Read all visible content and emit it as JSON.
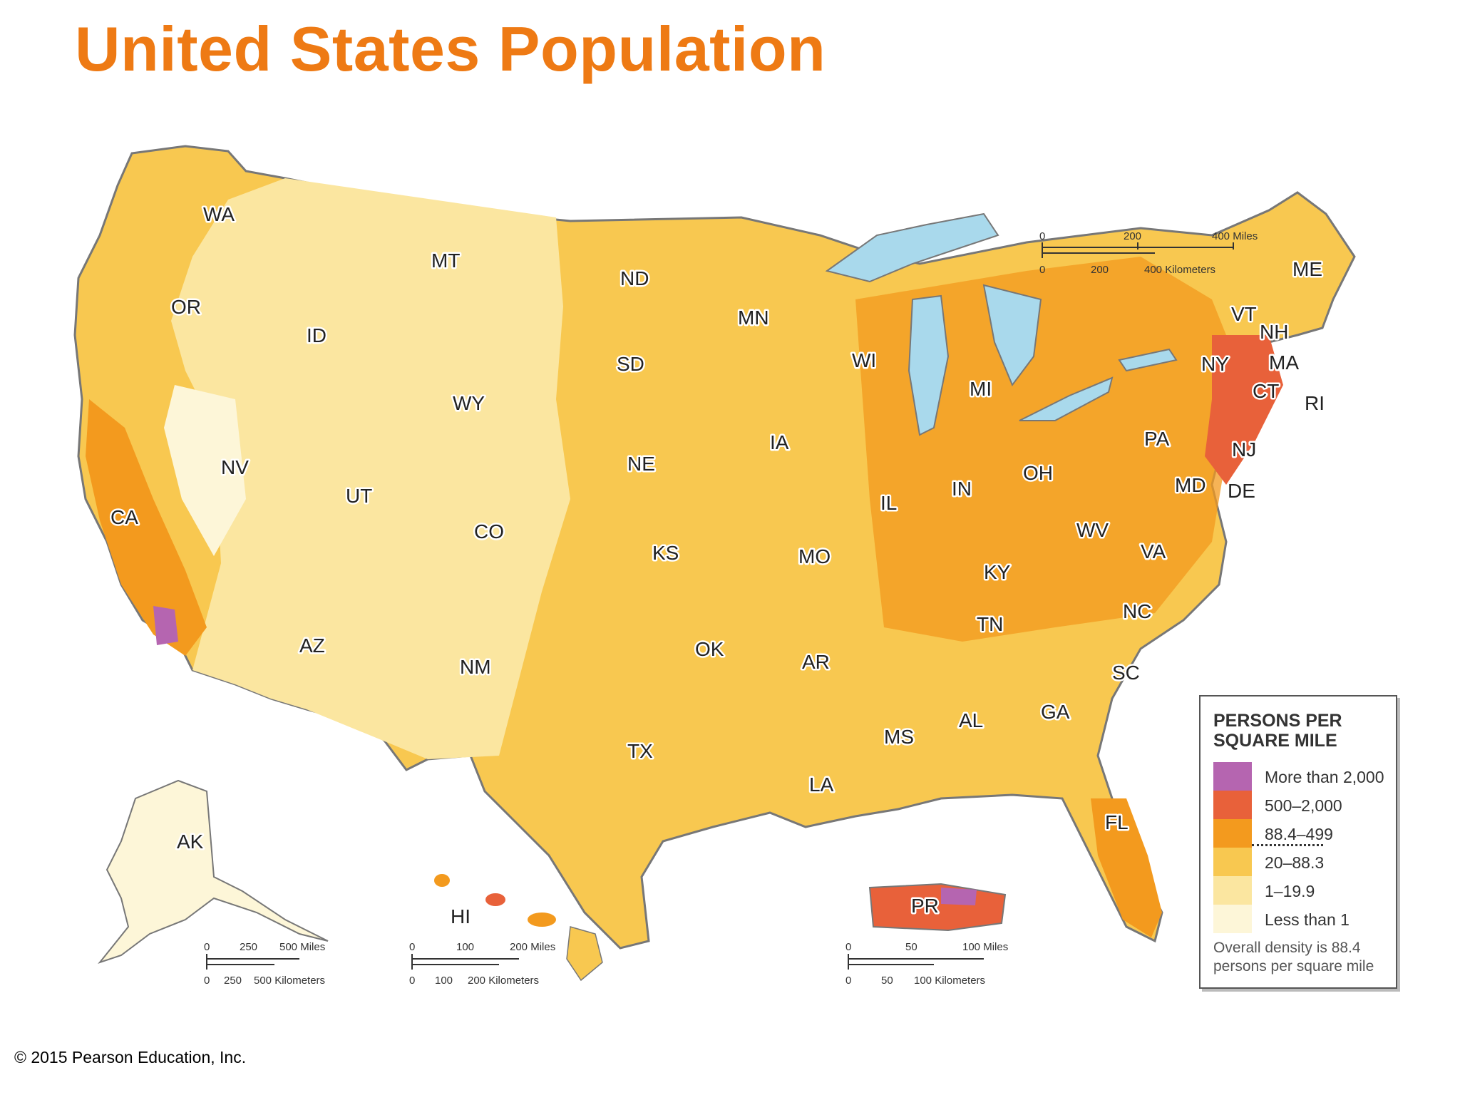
{
  "title": "United States Population",
  "copyright": "© 2015 Pearson Education, Inc.",
  "legend": {
    "title_line1": "PERSONS PER",
    "title_line2": "SQUARE MILE",
    "items": [
      {
        "label": "More than 2,000",
        "color": "#B565B0"
      },
      {
        "label": "500–2,000",
        "color": "#E8613A"
      },
      {
        "label": "88.4–499",
        "color": "#F39A1E"
      },
      {
        "label": "20–88.3",
        "color": "#F8C850"
      },
      {
        "label": "1–19.9",
        "color": "#FBE6A0"
      },
      {
        "label": "Less than 1",
        "color": "#FDF6D8"
      }
    ],
    "note_line1": "Overall density is 88.4",
    "note_line2": "persons per square mile"
  },
  "states": [
    "WA",
    "OR",
    "CA",
    "ID",
    "NV",
    "MT",
    "WY",
    "UT",
    "AZ",
    "CO",
    "NM",
    "ND",
    "SD",
    "NE",
    "KS",
    "OK",
    "TX",
    "MN",
    "IA",
    "MO",
    "AR",
    "LA",
    "WI",
    "IL",
    "MI",
    "IN",
    "OH",
    "KY",
    "TN",
    "MS",
    "AL",
    "GA",
    "FL",
    "SC",
    "NC",
    "VA",
    "WV",
    "PA",
    "NY",
    "VT",
    "NH",
    "ME",
    "MA",
    "CT",
    "RI",
    "NJ",
    "DE",
    "MD",
    "AK",
    "HI",
    "PR"
  ],
  "scales": {
    "main": {
      "miles": [
        "0",
        "200",
        "400 Miles"
      ],
      "km": [
        "0",
        "200",
        "400 Kilometers"
      ]
    },
    "alaska": {
      "miles": [
        "0",
        "250",
        "500 Miles"
      ],
      "km": [
        "0",
        "250",
        "500 Kilometers"
      ]
    },
    "hawaii": {
      "miles": [
        "0",
        "100",
        "200 Miles"
      ],
      "km": [
        "0",
        "100",
        "200 Kilometers"
      ]
    },
    "puerto_rico": {
      "miles": [
        "0",
        "50",
        "100 Miles"
      ],
      "km": [
        "0",
        "50",
        "100 Kilometers"
      ]
    }
  },
  "colors": {
    "title": "#EE7A14",
    "water": "#A9D9EC",
    "border": "#777777"
  }
}
